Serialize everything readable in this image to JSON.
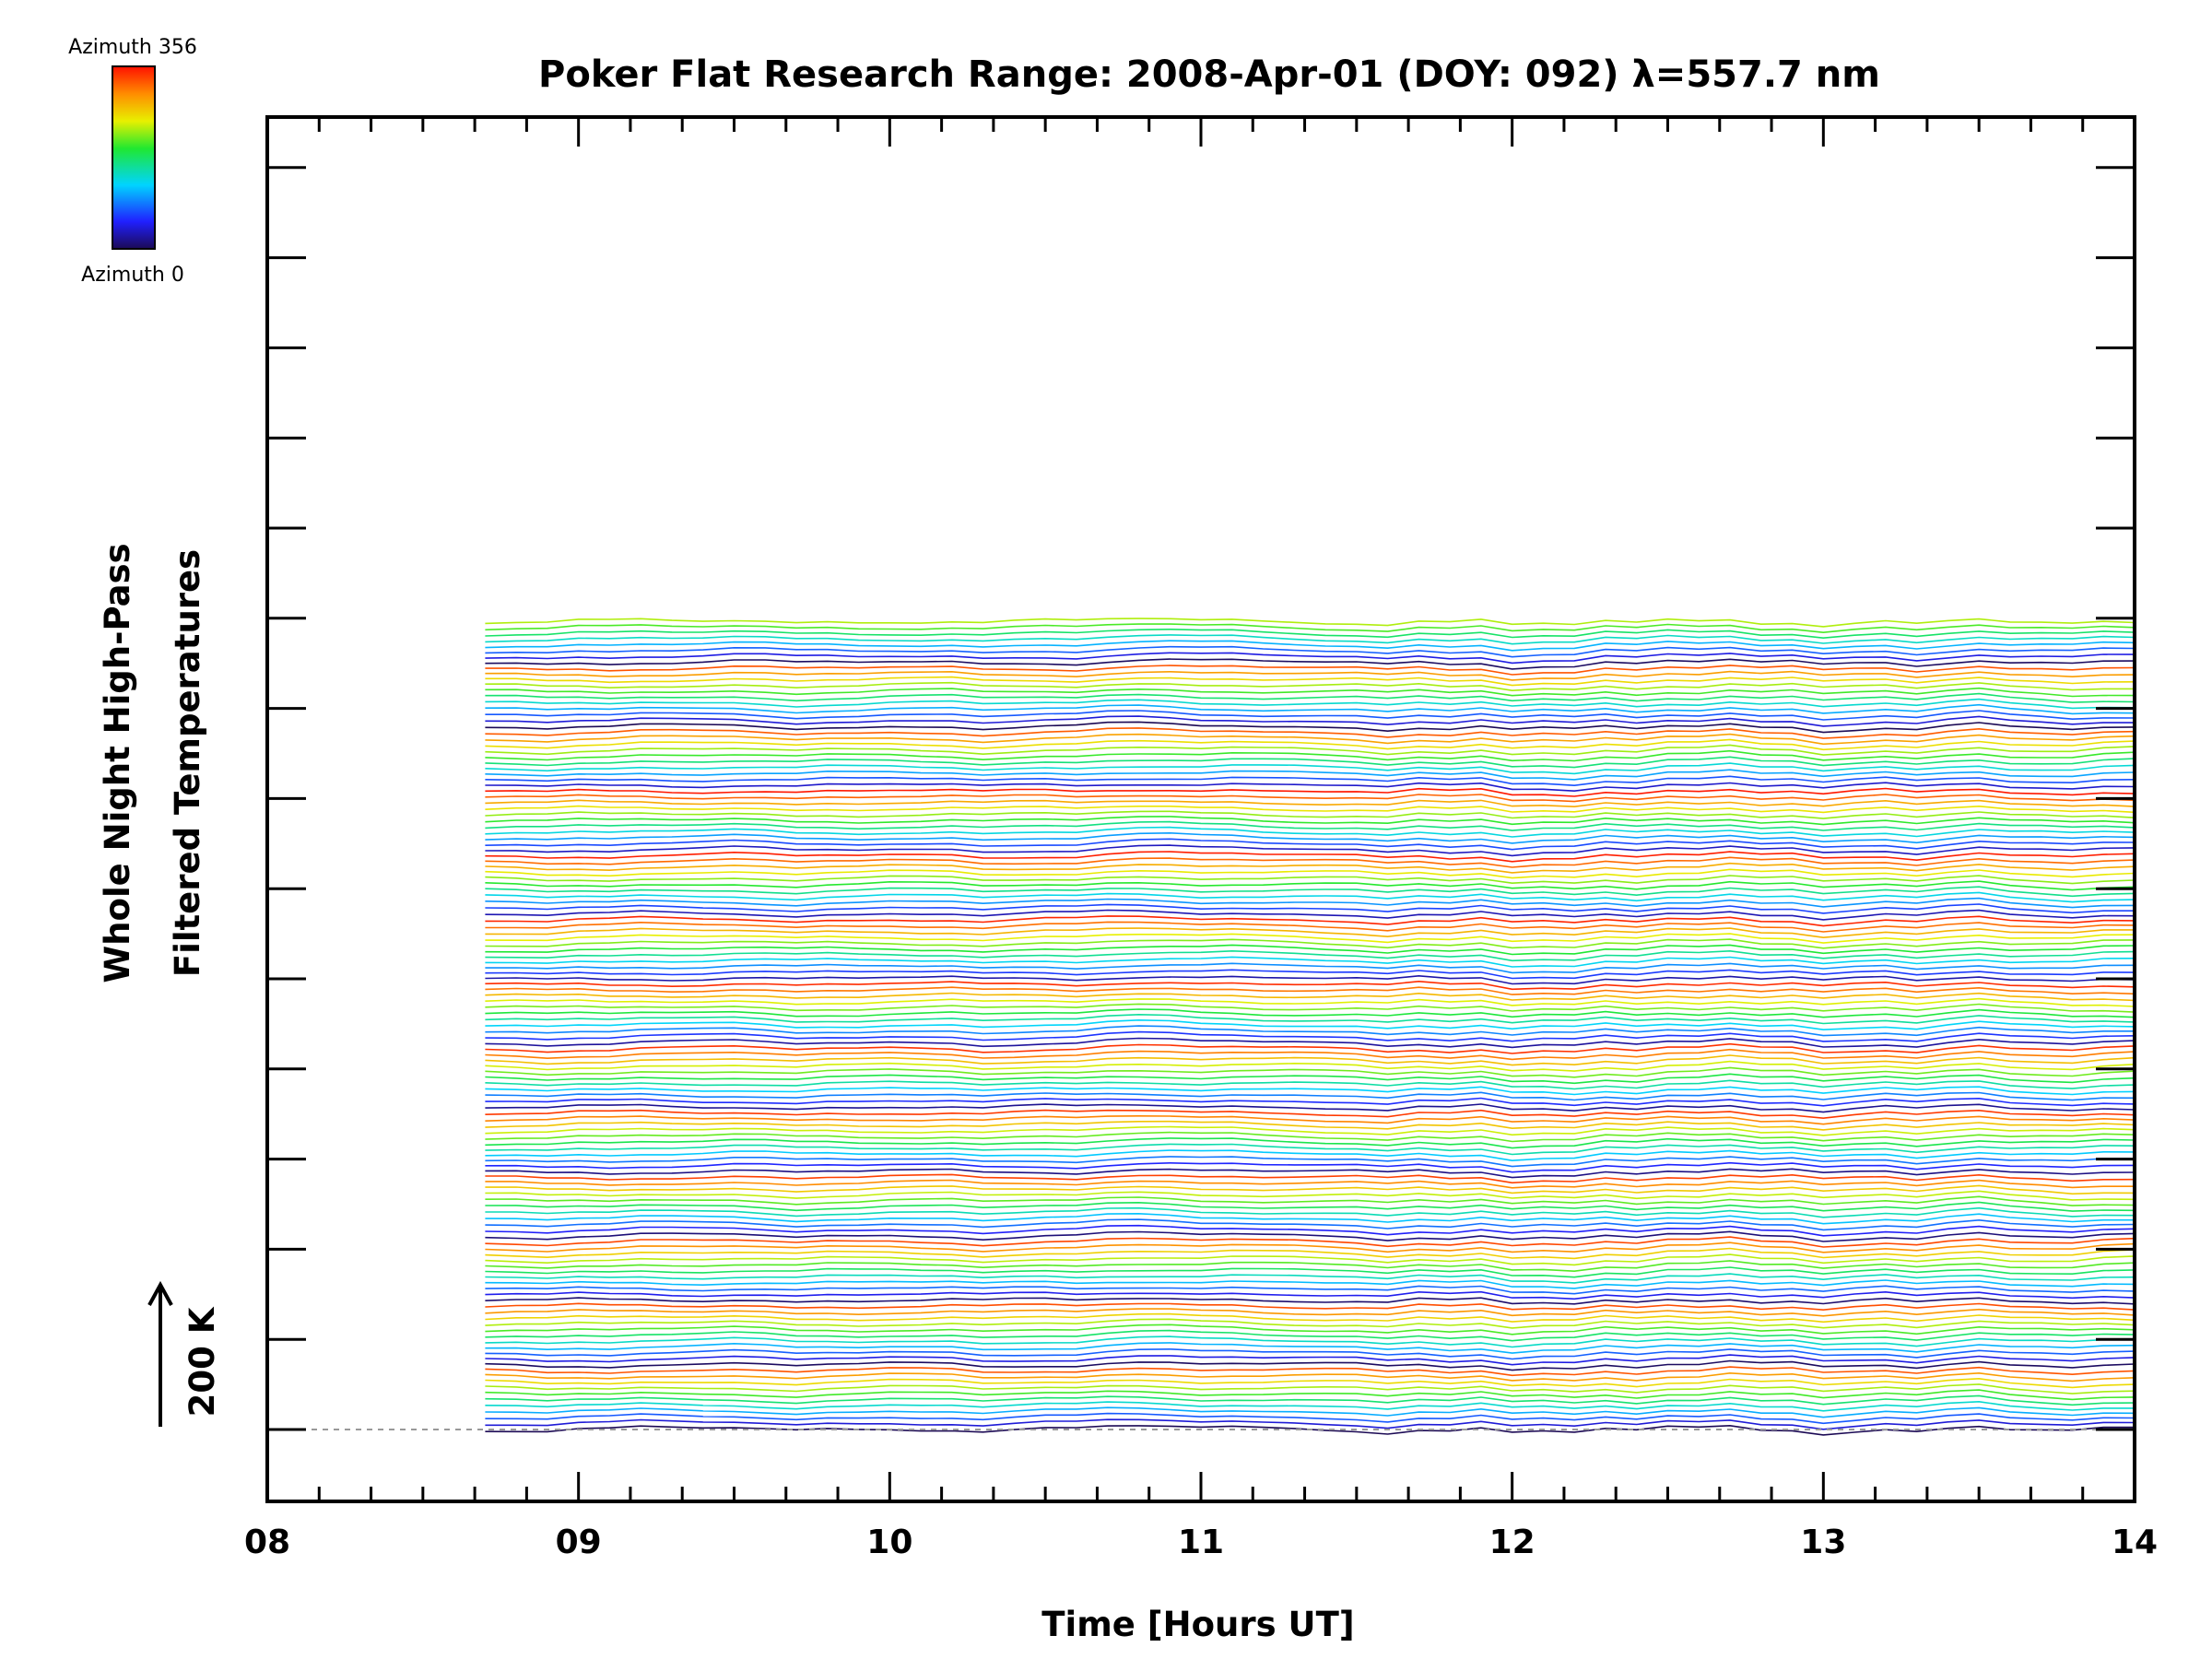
{
  "chart_data": {
    "type": "line",
    "title": "Poker Flat Research Range: 2008-Apr-01 (DOY: 092) λ=557.7 nm",
    "xlabel": "Time [Hours UT]",
    "ylabel_lines": [
      "Whole Night High-Pass",
      "Filtered Temperatures"
    ],
    "xlim": [
      8,
      14
    ],
    "x_ticks": [
      "08",
      "09",
      "10",
      "11",
      "12",
      "13",
      "14"
    ],
    "scale_bar_label": "200 K",
    "colorbar": {
      "top_label": "Azimuth 356",
      "bottom_label": "Azimuth 0"
    },
    "grid": false,
    "baseline_dashed": true,
    "n_traces": 139,
    "trace_spacing": "stacked, vertically offset",
    "x": [
      8.7,
      8.8,
      8.9,
      9.0,
      9.1,
      9.2,
      9.3,
      9.4,
      9.5,
      9.6,
      9.7,
      9.8,
      9.9,
      10.0,
      10.1,
      10.2,
      10.3,
      10.4,
      10.5,
      10.6,
      10.7,
      10.8,
      10.9,
      11.0,
      11.1,
      11.2,
      11.3,
      11.4,
      11.5,
      11.6,
      11.7,
      11.8,
      11.9,
      12.0,
      12.1,
      12.2,
      12.3,
      12.4,
      12.5,
      12.6,
      12.7,
      12.8,
      12.9,
      13.0,
      13.1,
      13.2,
      13.3,
      13.4,
      13.5,
      13.6,
      13.7,
      13.8,
      13.9,
      14.0
    ],
    "bottom_trace_values_K": [
      0,
      0,
      -4,
      2,
      0,
      5,
      3,
      3,
      6,
      3,
      -3,
      2,
      1,
      4,
      3,
      4,
      -4,
      0,
      3,
      1,
      9,
      12,
      11,
      6,
      8,
      4,
      3,
      1,
      0,
      -8,
      3,
      -4,
      4,
      -14,
      -8,
      -12,
      2,
      -6,
      6,
      3,
      12,
      0,
      3,
      -12,
      -4,
      2,
      -8,
      4,
      12,
      0,
      -3,
      -8,
      0,
      0
    ]
  }
}
